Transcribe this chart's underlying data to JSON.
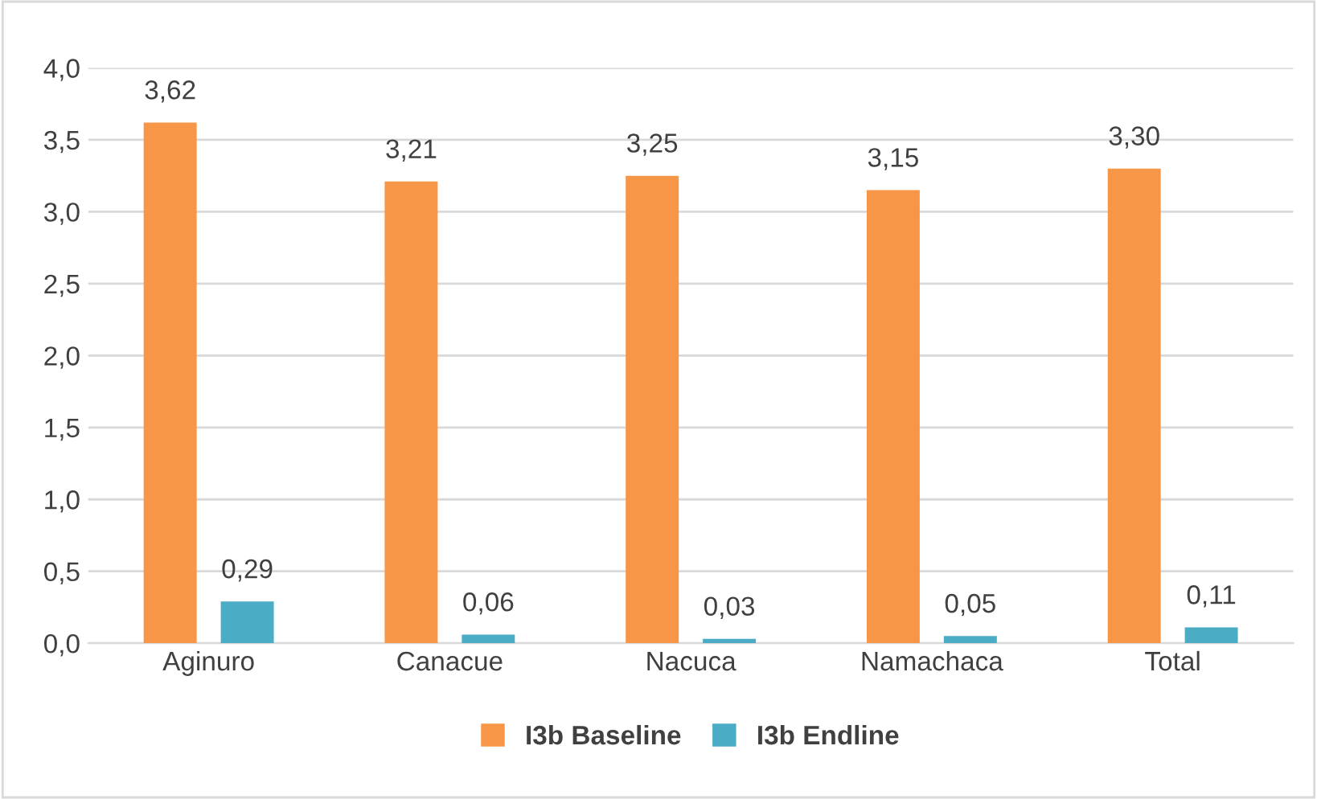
{
  "chart_data": {
    "type": "bar",
    "categories": [
      "Aginuro",
      "Canacue",
      "Nacuca",
      "Namachaca",
      "Total"
    ],
    "series": [
      {
        "name": "I3b Baseline",
        "color": "#f79646",
        "values": [
          3.62,
          3.21,
          3.25,
          3.15,
          3.3
        ],
        "value_labels": [
          "3,62",
          "3,21",
          "3,25",
          "3,15",
          "3,30"
        ]
      },
      {
        "name": "I3b Endline",
        "color": "#4bacc6",
        "values": [
          0.29,
          0.06,
          0.03,
          0.05,
          0.11
        ],
        "value_labels": [
          "0,29",
          "0,06",
          "0,03",
          "0,05",
          "0,11"
        ]
      }
    ],
    "ylim": [
      0,
      4
    ],
    "yticks": [
      {
        "value": 0,
        "label": "0,0"
      },
      {
        "value": 0.5,
        "label": "0,5"
      },
      {
        "value": 1,
        "label": "1,0"
      },
      {
        "value": 1.5,
        "label": "1,5"
      },
      {
        "value": 2,
        "label": "2,0"
      },
      {
        "value": 2.5,
        "label": "2,5"
      },
      {
        "value": 3,
        "label": "3,0"
      },
      {
        "value": 3.5,
        "label": "3,5"
      },
      {
        "value": 4,
        "label": "4,0"
      }
    ],
    "grid": "y",
    "legend": "bottom"
  }
}
